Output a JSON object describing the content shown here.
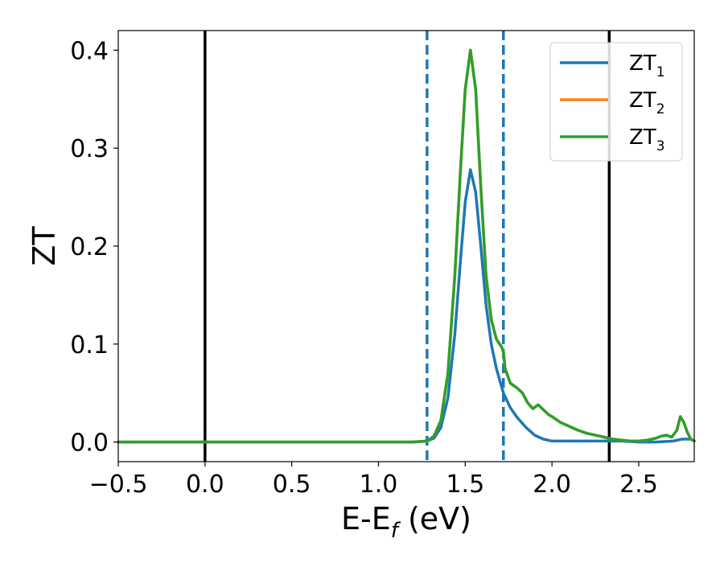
{
  "chart_data": {
    "type": "line",
    "title": "",
    "xlabel": "E-E",
    "xlabel_sub": "f",
    "xlabel_unit": " (eV)",
    "ylabel": "ZT",
    "xlim": [
      -0.5,
      2.82
    ],
    "ylim": [
      -0.02,
      0.42
    ],
    "xticks": [
      -0.5,
      0.0,
      0.5,
      1.0,
      1.5,
      2.0,
      2.5
    ],
    "xtick_labels": [
      "−0.5",
      "0.0",
      "0.5",
      "1.0",
      "1.5",
      "2.0",
      "2.5"
    ],
    "yticks": [
      0.0,
      0.1,
      0.2,
      0.3,
      0.4
    ],
    "ytick_labels": [
      "0.0",
      "0.1",
      "0.2",
      "0.3",
      "0.4"
    ],
    "grid": false,
    "legend_position": "top-right",
    "vertical_lines": [
      {
        "x": 0.0,
        "style": "solid",
        "color": "#000000"
      },
      {
        "x": 2.33,
        "style": "solid",
        "color": "#000000"
      },
      {
        "x": 1.28,
        "style": "dashed",
        "color": "#1f77b4"
      },
      {
        "x": 1.72,
        "style": "dashed",
        "color": "#1f77b4"
      }
    ],
    "series": [
      {
        "name": "ZT",
        "name_sub": "1",
        "color": "#1f77b4",
        "x": [
          -0.5,
          1.2,
          1.28,
          1.32,
          1.36,
          1.4,
          1.44,
          1.47,
          1.5,
          1.53,
          1.56,
          1.59,
          1.62,
          1.65,
          1.68,
          1.72,
          1.76,
          1.8,
          1.85,
          1.9,
          1.95,
          2.0,
          2.1,
          2.2,
          2.3,
          2.4,
          2.5,
          2.6,
          2.7,
          2.75,
          2.8,
          2.82
        ],
        "y": [
          0.0,
          0.0,
          0.001,
          0.004,
          0.015,
          0.045,
          0.11,
          0.18,
          0.245,
          0.278,
          0.255,
          0.2,
          0.14,
          0.1,
          0.075,
          0.05,
          0.035,
          0.025,
          0.015,
          0.007,
          0.003,
          0.001,
          0.001,
          0.001,
          0.001,
          0.001,
          0.0,
          0.0,
          0.001,
          0.003,
          0.003,
          0.001
        ]
      },
      {
        "name": "ZT",
        "name_sub": "2",
        "color": "#ff7f0e",
        "x": [
          -0.5,
          1.2,
          1.28,
          1.32,
          1.36,
          1.4,
          1.44,
          1.47,
          1.5,
          1.53,
          1.56,
          1.59,
          1.62,
          1.65,
          1.68,
          1.71,
          1.72,
          1.73,
          1.76,
          1.8,
          1.83,
          1.86,
          1.89,
          1.92,
          1.95,
          1.98,
          2.0,
          2.05,
          2.1,
          2.15,
          2.2,
          2.25,
          2.3,
          2.35,
          2.4,
          2.45,
          2.5,
          2.55,
          2.6,
          2.63,
          2.66,
          2.69,
          2.72,
          2.74,
          2.76,
          2.78,
          2.8,
          2.82
        ],
        "y": [
          0.0,
          0.0,
          0.001,
          0.006,
          0.022,
          0.07,
          0.17,
          0.27,
          0.36,
          0.4,
          0.36,
          0.26,
          0.17,
          0.125,
          0.105,
          0.097,
          0.092,
          0.075,
          0.06,
          0.055,
          0.05,
          0.04,
          0.034,
          0.038,
          0.033,
          0.028,
          0.026,
          0.02,
          0.016,
          0.012,
          0.009,
          0.007,
          0.005,
          0.003,
          0.002,
          0.001,
          0.001,
          0.002,
          0.004,
          0.006,
          0.007,
          0.005,
          0.012,
          0.026,
          0.02,
          0.01,
          0.003,
          0.001
        ]
      },
      {
        "name": "ZT",
        "name_sub": "3",
        "color": "#2ca02c",
        "x": [
          -0.5,
          1.2,
          1.28,
          1.32,
          1.36,
          1.4,
          1.44,
          1.47,
          1.5,
          1.53,
          1.56,
          1.59,
          1.62,
          1.65,
          1.68,
          1.71,
          1.72,
          1.73,
          1.76,
          1.8,
          1.83,
          1.86,
          1.89,
          1.92,
          1.95,
          1.98,
          2.0,
          2.05,
          2.1,
          2.15,
          2.2,
          2.25,
          2.3,
          2.35,
          2.4,
          2.45,
          2.5,
          2.55,
          2.6,
          2.63,
          2.66,
          2.69,
          2.72,
          2.74,
          2.76,
          2.78,
          2.8,
          2.82
        ],
        "y": [
          0.0,
          0.0,
          0.001,
          0.006,
          0.022,
          0.07,
          0.17,
          0.27,
          0.36,
          0.4,
          0.36,
          0.26,
          0.17,
          0.125,
          0.105,
          0.097,
          0.092,
          0.075,
          0.06,
          0.055,
          0.05,
          0.04,
          0.034,
          0.038,
          0.033,
          0.028,
          0.026,
          0.02,
          0.016,
          0.012,
          0.009,
          0.007,
          0.005,
          0.003,
          0.002,
          0.001,
          0.001,
          0.002,
          0.004,
          0.006,
          0.007,
          0.005,
          0.012,
          0.026,
          0.02,
          0.01,
          0.003,
          0.001
        ]
      }
    ]
  }
}
